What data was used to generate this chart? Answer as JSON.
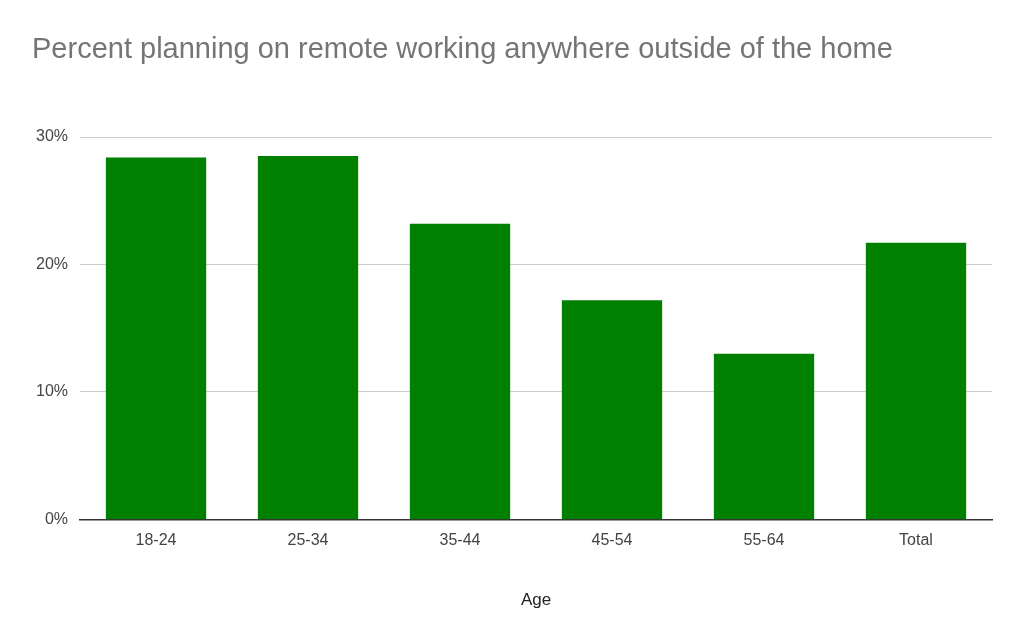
{
  "chart_data": {
    "type": "bar",
    "title": "Percent planning on remote working anywhere outside of the home",
    "xlabel": "Age",
    "categories": [
      "18-24",
      "25-34",
      "35-44",
      "45-54",
      "55-64",
      "Total"
    ],
    "values": [
      28.4,
      28.5,
      23.2,
      17.2,
      13.0,
      21.7
    ],
    "color": "#008000",
    "ylim": [
      0,
      30
    ],
    "yticks": [
      {
        "value": 0,
        "label": "0%"
      },
      {
        "value": 10,
        "label": "10%"
      },
      {
        "value": 20,
        "label": "20%"
      },
      {
        "value": 30,
        "label": "30%"
      }
    ],
    "grid": "y",
    "legend": false
  }
}
